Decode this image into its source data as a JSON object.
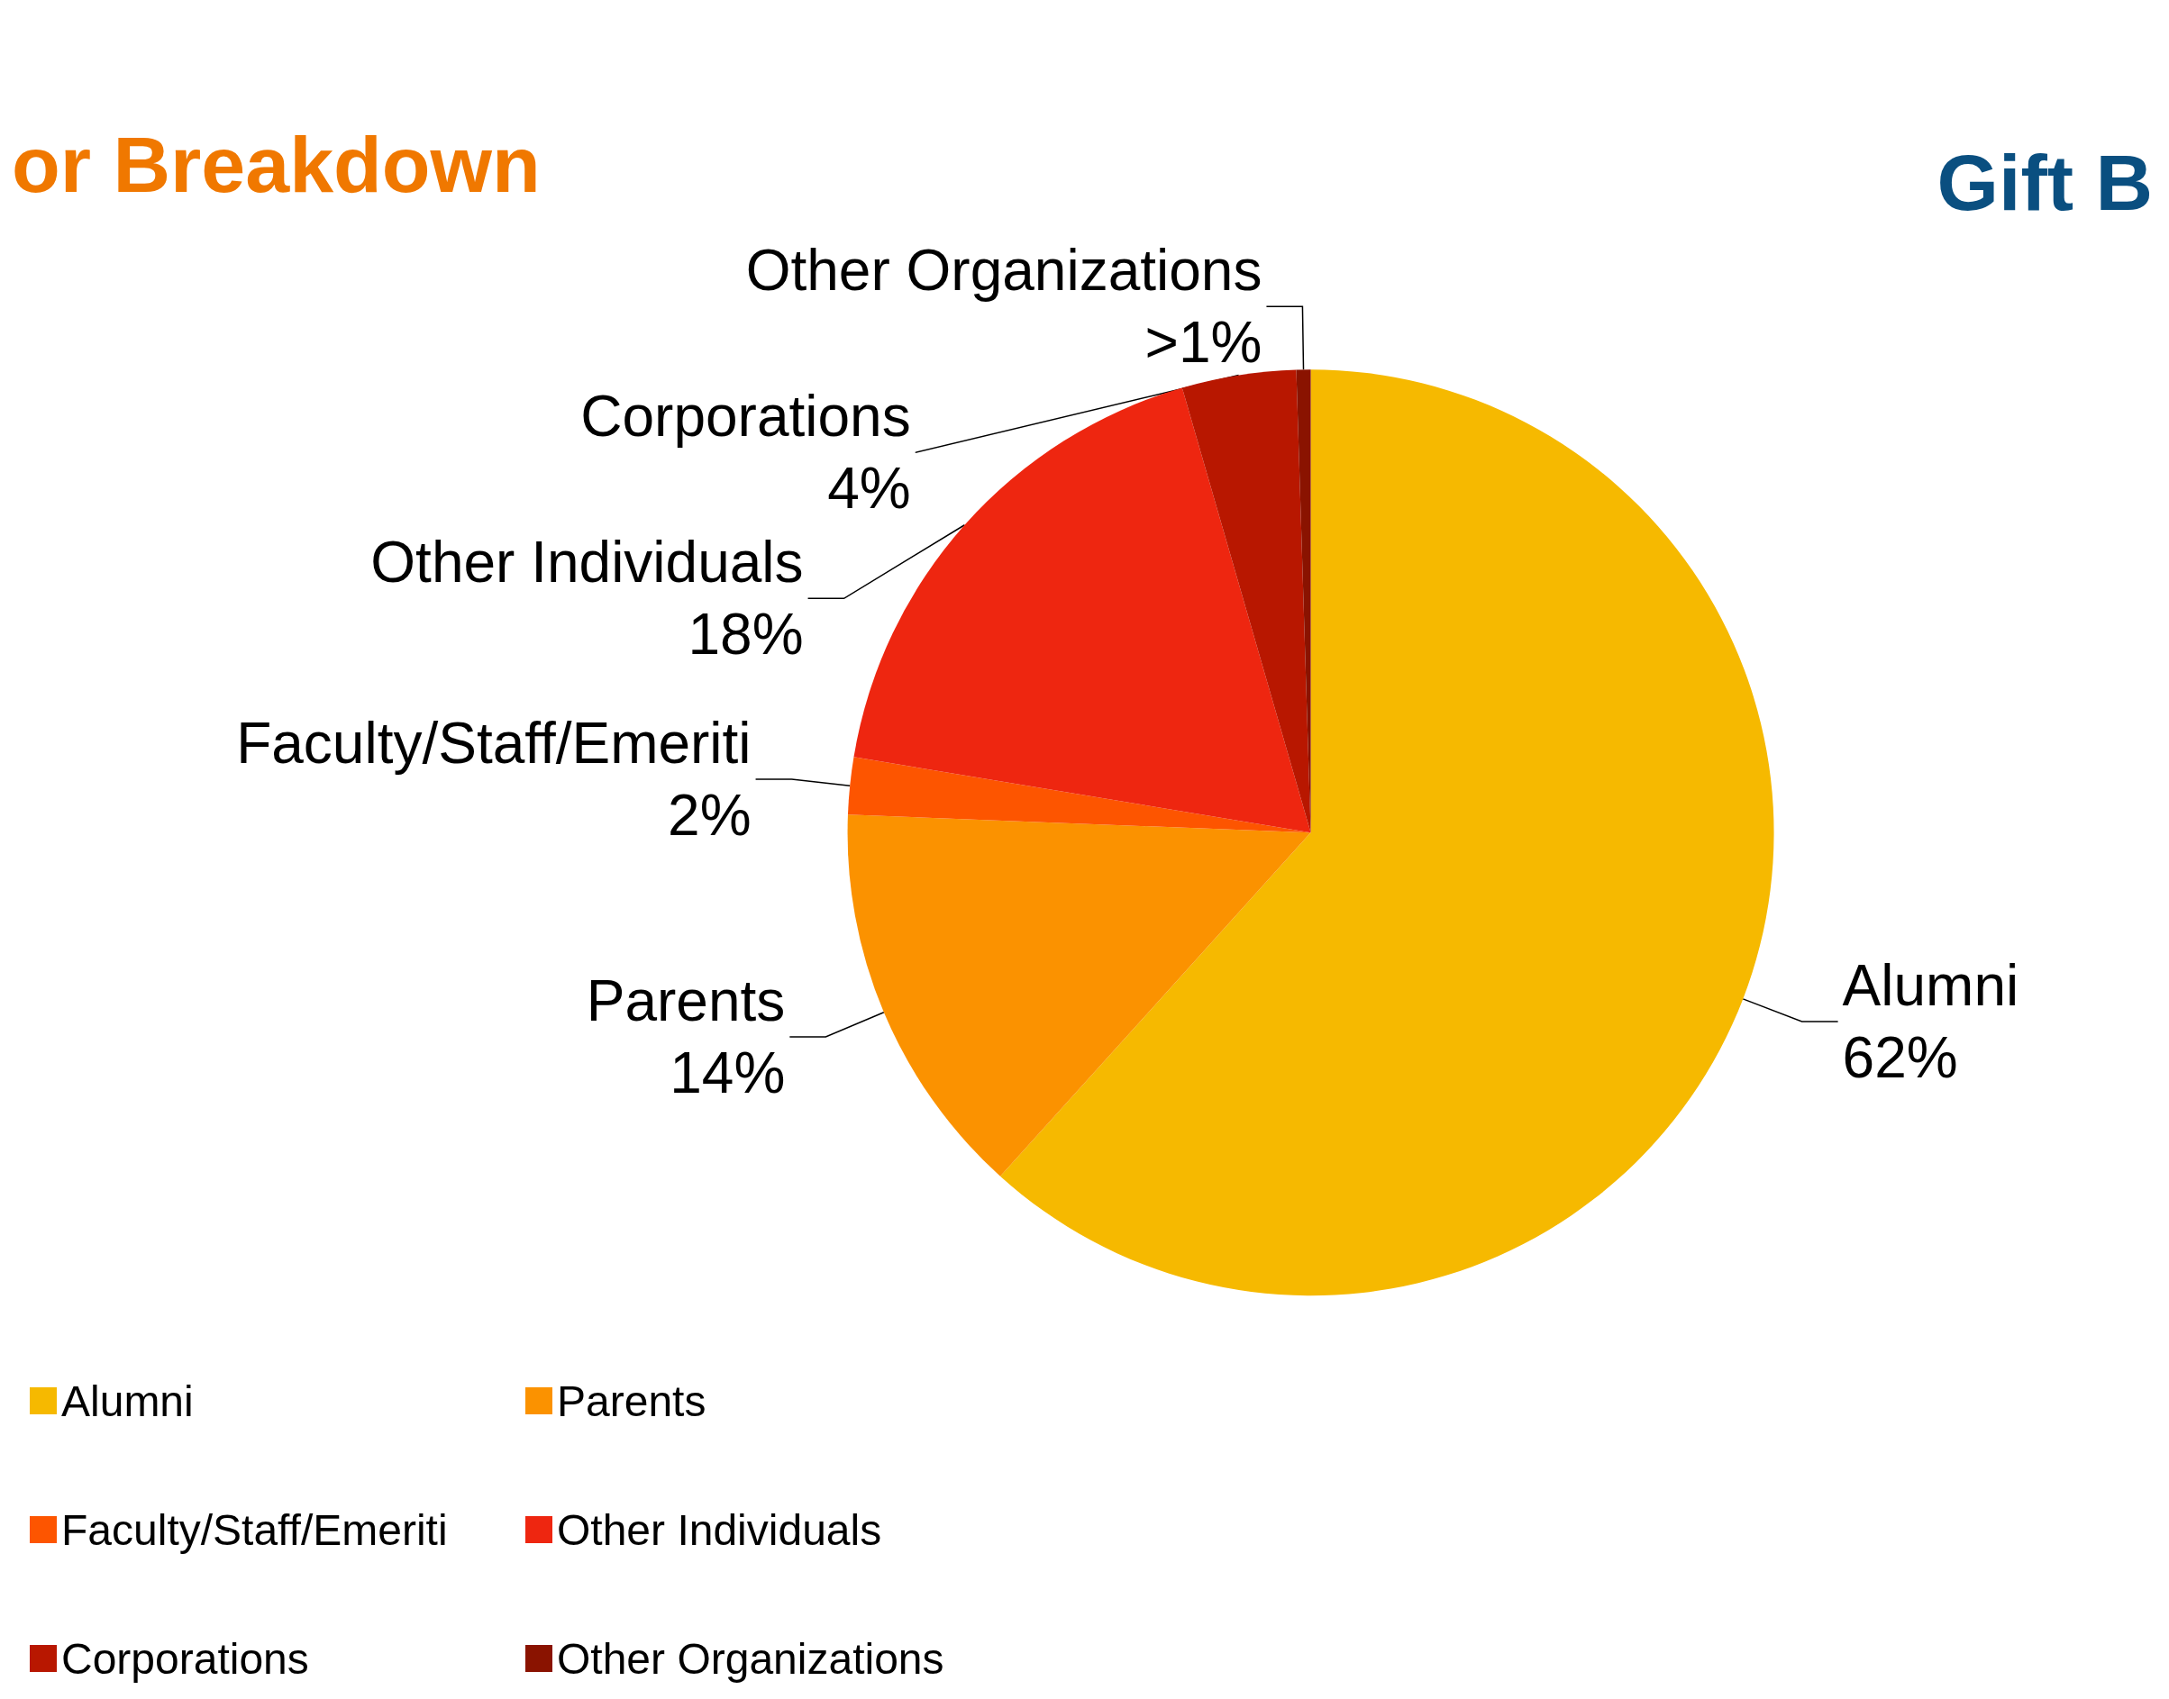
{
  "chart_data": {
    "type": "pie",
    "title": "or Breakdown",
    "annotations": [
      "Gift B"
    ],
    "categories": [
      "Alumni",
      "Parents",
      "Faculty/Staff/Emeriti",
      "Other Individuals",
      "Corporations",
      "Other Organizations"
    ],
    "values": [
      62,
      14,
      2,
      18,
      4,
      0.5
    ],
    "value_labels": [
      "62%",
      "14%",
      "2%",
      "18%",
      "4%",
      ">1%"
    ],
    "colors": [
      "#f6b900",
      "#fb9200",
      "#fd5500",
      "#ee2610",
      "#b81700",
      "#8a1300"
    ],
    "legend": "bottom left"
  }
}
